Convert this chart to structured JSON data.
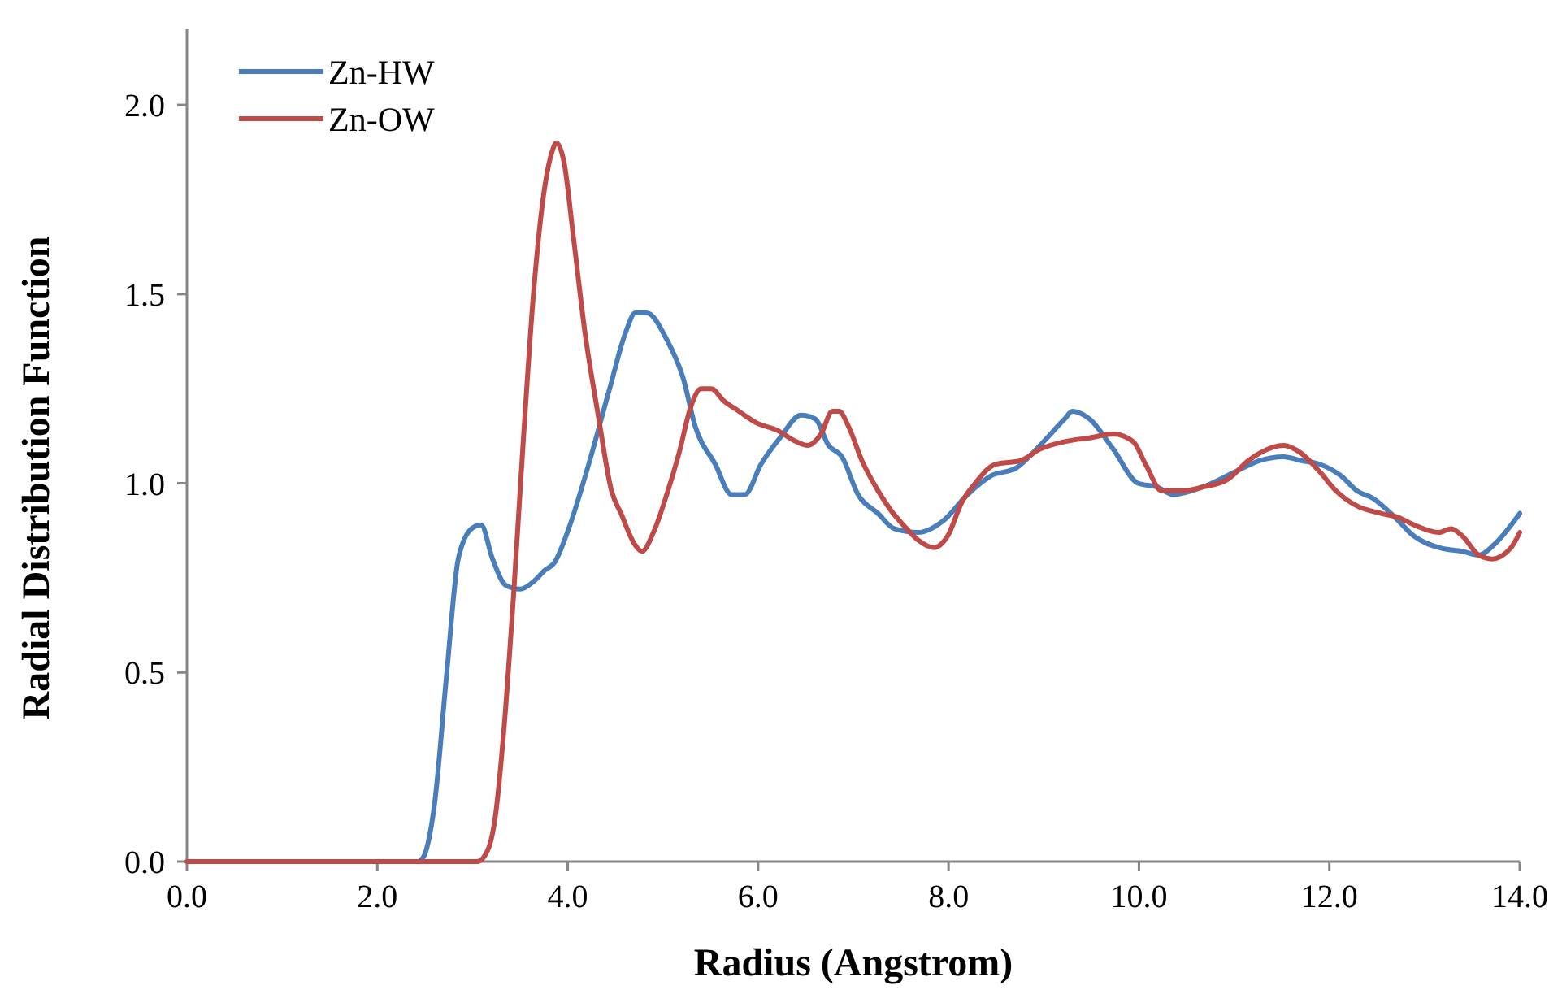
{
  "chart_data": {
    "type": "line",
    "xlabel": "Radius (Angstrom)",
    "ylabel": "Radial Distribution Function",
    "xlim": [
      0,
      14
    ],
    "ylim": [
      0,
      2.2
    ],
    "xticks": [
      {
        "value": 0,
        "label": "0.0"
      },
      {
        "value": 2,
        "label": "2.0"
      },
      {
        "value": 4,
        "label": "4.0"
      },
      {
        "value": 6,
        "label": "6.0"
      },
      {
        "value": 8,
        "label": "8.0"
      },
      {
        "value": 10,
        "label": "10.0"
      },
      {
        "value": 12,
        "label": "12.0"
      },
      {
        "value": 14,
        "label": "14.0"
      }
    ],
    "yticks": [
      {
        "value": 0,
        "label": "0.0"
      },
      {
        "value": 0.5,
        "label": "0.5"
      },
      {
        "value": 1,
        "label": "1.0"
      },
      {
        "value": 1.5,
        "label": "1.5"
      },
      {
        "value": 2,
        "label": "2.0"
      }
    ],
    "grid": false,
    "legend": "top left",
    "marker": "none",
    "line_style": "solid",
    "series": [
      {
        "name": "Zn-HW",
        "color": "#4a7ebb",
        "x": [
          2.44,
          2.5,
          2.6,
          2.73,
          2.85,
          2.99,
          3.09,
          3.21,
          3.35,
          3.5,
          3.64,
          3.76,
          3.86,
          4.01,
          4.22,
          4.44,
          4.61,
          4.71,
          4.83,
          5.04,
          5.21,
          5.34,
          5.55,
          5.72,
          5.86,
          6.03,
          6.23,
          6.45,
          6.6,
          6.74,
          6.88,
          7.05,
          7.26,
          7.43,
          7.68,
          7.94,
          8.2,
          8.45,
          8.71,
          8.96,
          9.22,
          9.3,
          9.48,
          9.73,
          9.99,
          10.19,
          10.36,
          10.67,
          11.01,
          11.27,
          11.52,
          11.7,
          11.9,
          12.12,
          12.29,
          12.46,
          12.69,
          12.89,
          13.15,
          13.4,
          13.57,
          13.74,
          14
        ],
        "values": [
          0,
          0.02,
          0.15,
          0.5,
          0.8,
          0.88,
          0.89,
          0.8,
          0.73,
          0.72,
          0.74,
          0.77,
          0.79,
          0.88,
          1.05,
          1.25,
          1.4,
          1.45,
          1.45,
          1.38,
          1.28,
          1.15,
          1.05,
          0.97,
          0.97,
          1.05,
          1.12,
          1.18,
          1.17,
          1.1,
          1.07,
          0.97,
          0.92,
          0.88,
          0.87,
          0.9,
          0.97,
          1.02,
          1.04,
          1.1,
          1.17,
          1.19,
          1.17,
          1.09,
          1,
          0.99,
          0.97,
          0.99,
          1.03,
          1.06,
          1.07,
          1.06,
          1.05,
          1.02,
          0.98,
          0.96,
          0.91,
          0.86,
          0.83,
          0.82,
          0.81,
          0.84,
          0.92
        ]
      },
      {
        "name": "Zn-OW",
        "color": "#be4b48",
        "x": [
          0,
          1,
          2,
          3,
          3.05,
          3.16,
          3.24,
          3.33,
          3.43,
          3.53,
          3.64,
          3.74,
          3.84,
          3.88,
          3.96,
          4.06,
          4.18,
          4.32,
          4.46,
          4.56,
          4.7,
          4.78,
          4.9,
          5.04,
          5.17,
          5.29,
          5.4,
          5.51,
          5.63,
          5.8,
          5.98,
          6.2,
          6.4,
          6.52,
          6.66,
          6.78,
          6.85,
          6.95,
          7.09,
          7.26,
          7.39,
          7.56,
          7.68,
          7.85,
          7.99,
          8.14,
          8.28,
          8.49,
          8.76,
          8.96,
          9.22,
          9.48,
          9.73,
          9.94,
          10.07,
          10.24,
          10.47,
          10.67,
          10.93,
          11.15,
          11.27,
          11.52,
          11.7,
          11.9,
          12.07,
          12.29,
          12.55,
          12.72,
          12.89,
          13.15,
          13.28,
          13.4,
          13.57,
          13.71,
          13.91,
          14
        ],
        "values": [
          0,
          0,
          0,
          0,
          0,
          0.03,
          0.12,
          0.35,
          0.7,
          1.1,
          1.5,
          1.75,
          1.88,
          1.9,
          1.85,
          1.65,
          1.4,
          1.18,
          0.98,
          0.92,
          0.84,
          0.82,
          0.87,
          0.97,
          1.08,
          1.2,
          1.25,
          1.25,
          1.22,
          1.19,
          1.16,
          1.14,
          1.11,
          1.1,
          1.13,
          1.19,
          1.19,
          1.15,
          1.06,
          0.98,
          0.93,
          0.88,
          0.85,
          0.83,
          0.86,
          0.95,
          1,
          1.05,
          1.06,
          1.09,
          1.11,
          1.12,
          1.13,
          1.11,
          1.05,
          0.98,
          0.98,
          0.99,
          1.01,
          1.06,
          1.08,
          1.1,
          1.08,
          1.03,
          0.98,
          0.94,
          0.92,
          0.91,
          0.89,
          0.87,
          0.88,
          0.86,
          0.81,
          0.8,
          0.83,
          0.87
        ]
      }
    ]
  }
}
